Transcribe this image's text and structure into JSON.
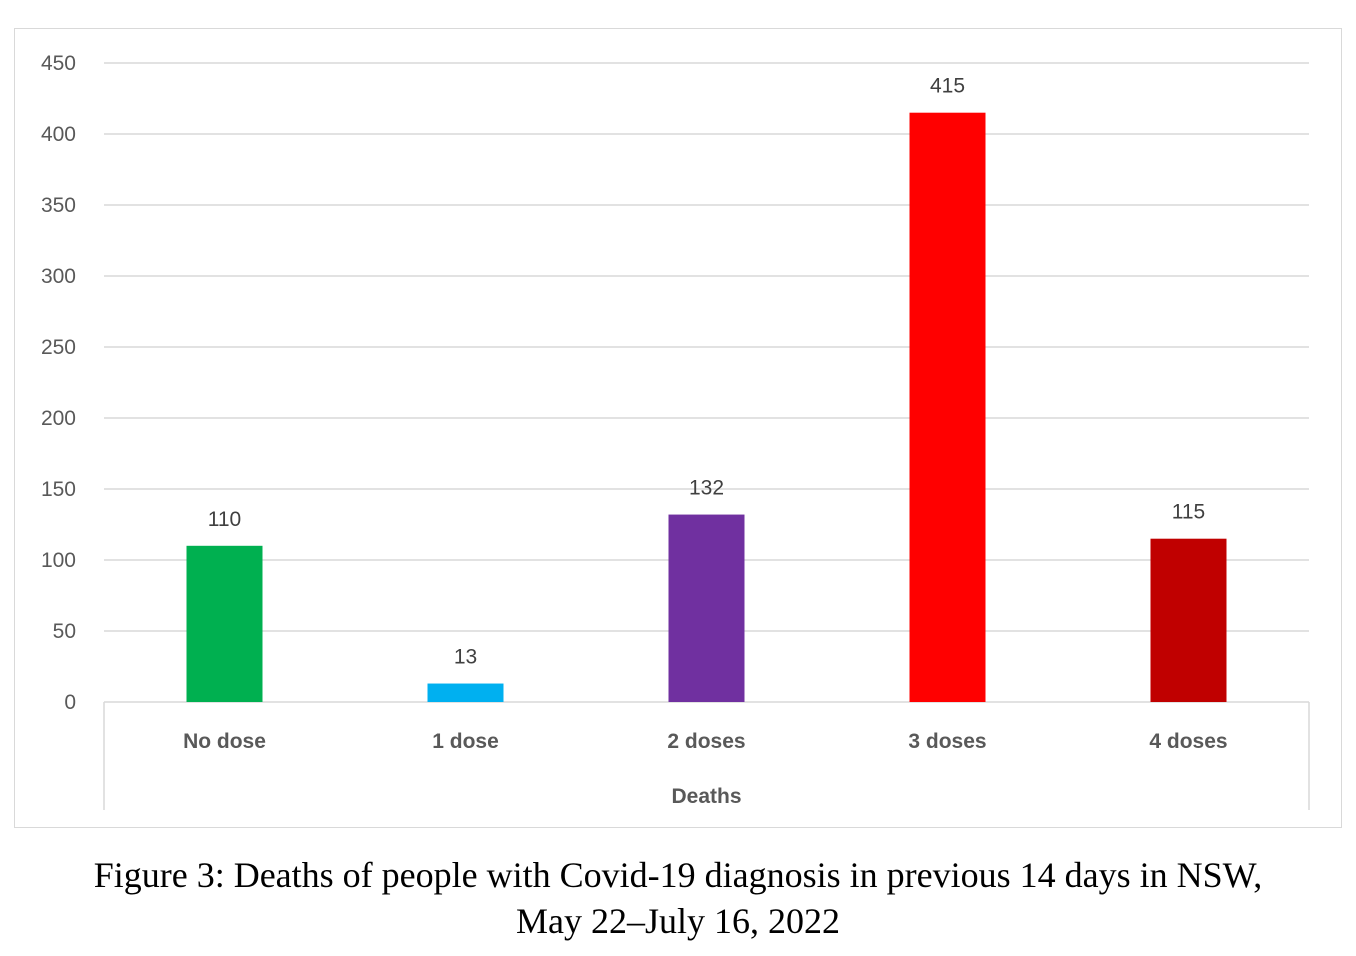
{
  "chart_data": {
    "type": "bar",
    "categories": [
      "No dose",
      "1 dose",
      "2 doses",
      "3 doses",
      "4 doses"
    ],
    "values": [
      110,
      13,
      132,
      415,
      115
    ],
    "colors": [
      "#00b050",
      "#00b0f0",
      "#7030a0",
      "#ff0000",
      "#c00000"
    ],
    "xlabel": "Deaths",
    "ylabel": "",
    "ylim": [
      0,
      450
    ],
    "yticks": [
      0,
      50,
      100,
      150,
      200,
      250,
      300,
      350,
      400,
      450
    ],
    "grid": true,
    "data_labels": true
  },
  "caption": {
    "line1": "Figure 3: Deaths of people with Covid-19 diagnosis in previous 14 days in NSW,",
    "line2": "May 22–July 16, 2022"
  }
}
